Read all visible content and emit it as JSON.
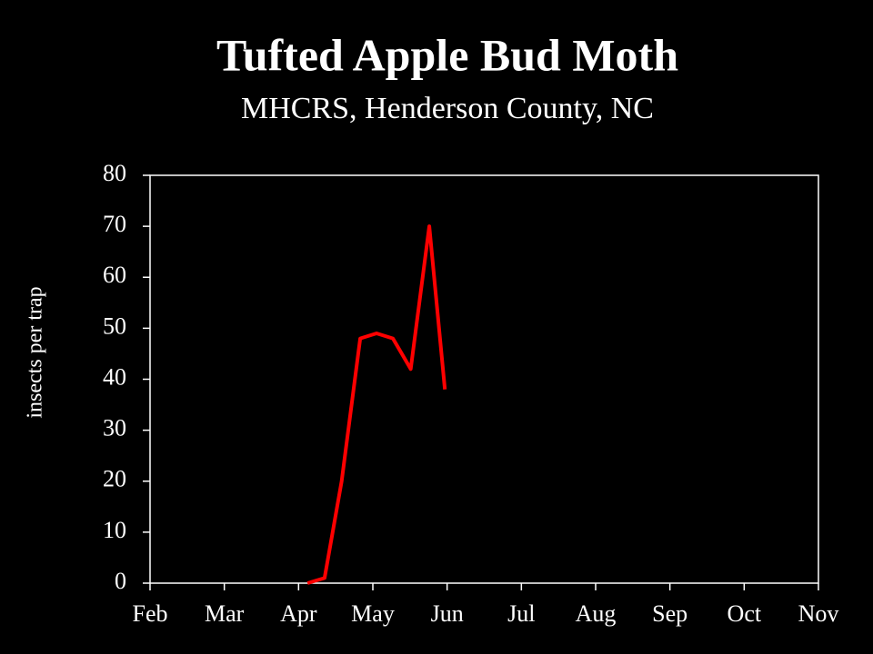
{
  "chart_data": {
    "type": "line",
    "title": "Tufted Apple Bud Moth",
    "subtitle": "MHCRS, Henderson County, NC",
    "y_label": "insects per trap",
    "x": [
      4.12,
      4.35,
      4.58,
      4.83,
      5.05,
      5.27,
      5.51,
      5.76,
      5.97
    ],
    "series": [
      {
        "name": "Tufted Apple Bud Moth",
        "color": "#ff0000",
        "values": [
          0,
          1,
          20,
          48,
          49,
          48,
          42,
          70,
          38
        ]
      }
    ],
    "xlim": [
      2,
      11
    ],
    "xticks": [
      {
        "value": 2,
        "label": "Feb"
      },
      {
        "value": 3,
        "label": "Mar"
      },
      {
        "value": 4,
        "label": "Apr"
      },
      {
        "value": 5,
        "label": "May"
      },
      {
        "value": 6,
        "label": "Jun"
      },
      {
        "value": 7,
        "label": "Jul"
      },
      {
        "value": 8,
        "label": "Aug"
      },
      {
        "value": 9,
        "label": "Sep"
      },
      {
        "value": 10,
        "label": "Oct"
      },
      {
        "value": 11,
        "label": "Nov"
      }
    ],
    "ylim": [
      0,
      80
    ],
    "yticks": [
      0,
      10,
      20,
      30,
      40,
      50,
      60,
      70,
      80
    ]
  }
}
